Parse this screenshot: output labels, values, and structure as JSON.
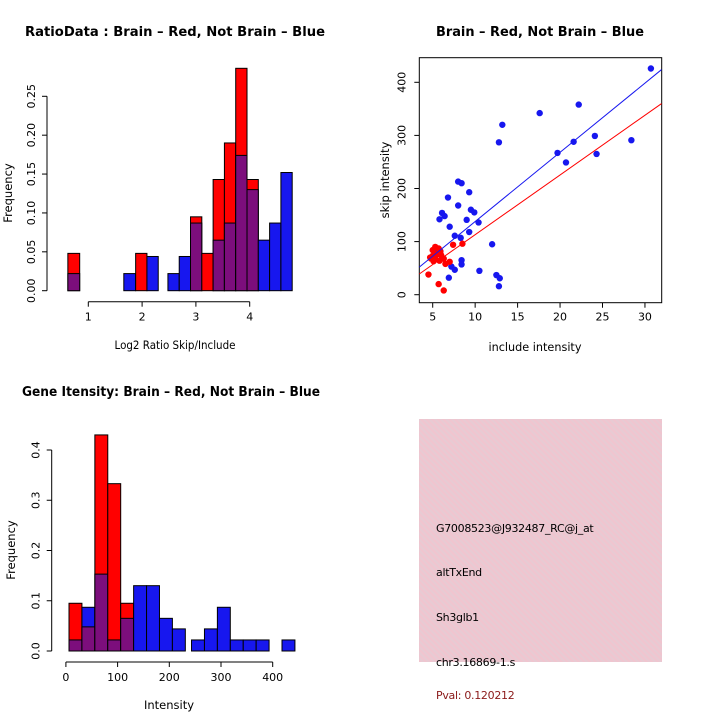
{
  "colors": {
    "red": "#ff0000",
    "blue": "#1717ef",
    "purple": "#7c0e7c",
    "pink_box": "#eec6cf",
    "pval_text": "#8b1a1a",
    "black": "#000000"
  },
  "legend_semantics": {
    "red": "Brain",
    "blue": "Not Brain",
    "purple": "Overlap"
  },
  "info_box": {
    "probe_id": "G7008523@J932487_RC@j_at",
    "event_type": "altTxEnd",
    "gene_name": "Sh3glb1",
    "location": "chr3.16869-1.s",
    "pval": "Pval: 0.120212"
  },
  "chart_data": [
    {
      "id": "ratio_hist",
      "type": "bar",
      "subtype": "overlaid-histogram",
      "title": "RatioData : Brain – Red, Not Brain – Blue",
      "xlabel": "Log2 Ratio Skip/Include",
      "ylabel": "Frequency",
      "xlim": [
        0.5,
        4.95
      ],
      "ylim": [
        0,
        0.29
      ],
      "axis_x_range": [
        1,
        4
      ],
      "x_ticks": [
        1,
        2,
        3,
        4
      ],
      "x_tick_labels": [
        "1",
        "2",
        "3",
        "4"
      ],
      "y_ticks": [
        0,
        0.05,
        0.1,
        0.15,
        0.2,
        0.25
      ],
      "y_tick_labels": [
        "0.00",
        "0.05",
        "0.10",
        "0.15",
        "0.20",
        "0.25"
      ],
      "bars": [
        {
          "x0": 0.62,
          "x1": 0.84,
          "red": 0.048,
          "overlap": 0.022
        },
        {
          "x0": 1.66,
          "x1": 1.88,
          "blue": 0.022
        },
        {
          "x0": 1.88,
          "x1": 2.09,
          "red": 0.048
        },
        {
          "x0": 2.09,
          "x1": 2.3,
          "blue": 0.044
        },
        {
          "x0": 2.48,
          "x1": 2.69,
          "blue": 0.022
        },
        {
          "x0": 2.69,
          "x1": 2.9,
          "blue": 0.044
        },
        {
          "x0": 2.9,
          "x1": 3.11,
          "red": 0.095,
          "overlap": 0.087
        },
        {
          "x0": 3.11,
          "x1": 3.32,
          "red": 0.048
        },
        {
          "x0": 3.32,
          "x1": 3.53,
          "red": 0.143,
          "overlap": 0.065
        },
        {
          "x0": 3.53,
          "x1": 3.74,
          "red": 0.19,
          "overlap": 0.087
        },
        {
          "x0": 3.74,
          "x1": 3.95,
          "red": 0.286,
          "overlap": 0.174
        },
        {
          "x0": 3.95,
          "x1": 4.16,
          "red": 0.143,
          "overlap": 0.13
        },
        {
          "x0": 4.16,
          "x1": 4.37,
          "blue": 0.065
        },
        {
          "x0": 4.37,
          "x1": 4.58,
          "blue": 0.087
        },
        {
          "x0": 4.58,
          "x1": 4.79,
          "blue": 0.152
        }
      ]
    },
    {
      "id": "scatter",
      "type": "scatter",
      "title": "Brain – Red, Not Brain – Blue",
      "xlabel": "include intensity",
      "ylabel": "skip intensity",
      "xlim": [
        3.42,
        31.96
      ],
      "ylim": [
        -15,
        443
      ],
      "x_ticks": [
        5,
        10,
        15,
        20,
        25,
        30
      ],
      "x_tick_labels": [
        "5",
        "10",
        "15",
        "20",
        "25",
        "30"
      ],
      "y_ticks": [
        0,
        100,
        200,
        300,
        400
      ],
      "y_tick_labels": [
        "0",
        "100",
        "200",
        "300",
        "400"
      ],
      "blue_points": [
        [
          30.7,
          426
        ],
        [
          22.2,
          358
        ],
        [
          17.6,
          342
        ],
        [
          13.2,
          320
        ],
        [
          24.1,
          299
        ],
        [
          28.4,
          291
        ],
        [
          21.6,
          288
        ],
        [
          12.8,
          287
        ],
        [
          19.7,
          267
        ],
        [
          24.3,
          265
        ],
        [
          20.7,
          249
        ],
        [
          8.0,
          213
        ],
        [
          8.4,
          210
        ],
        [
          9.3,
          193
        ],
        [
          6.8,
          183
        ],
        [
          8.0,
          168
        ],
        [
          9.5,
          160
        ],
        [
          9.9,
          155
        ],
        [
          6.1,
          154
        ],
        [
          6.4,
          148
        ],
        [
          5.8,
          142
        ],
        [
          9.0,
          141
        ],
        [
          10.4,
          136
        ],
        [
          7.0,
          128
        ],
        [
          9.3,
          118
        ],
        [
          7.6,
          111
        ],
        [
          8.3,
          107
        ],
        [
          12.0,
          95
        ],
        [
          5.9,
          82
        ],
        [
          5.5,
          79
        ],
        [
          8.4,
          65
        ],
        [
          8.4,
          57
        ],
        [
          7.2,
          53
        ],
        [
          7.6,
          47
        ],
        [
          10.5,
          45
        ],
        [
          12.5,
          37
        ],
        [
          12.9,
          31
        ],
        [
          6.9,
          32
        ],
        [
          12.8,
          16
        ]
      ],
      "red_points": [
        [
          5.3,
          90
        ],
        [
          5.7,
          87
        ],
        [
          5.0,
          84
        ],
        [
          5.9,
          81
        ],
        [
          5.5,
          76
        ],
        [
          5.0,
          73
        ],
        [
          6.0,
          74
        ],
        [
          4.8,
          68
        ],
        [
          5.3,
          67
        ],
        [
          5.8,
          64
        ],
        [
          6.3,
          68
        ],
        [
          4.7,
          70
        ],
        [
          5.1,
          63
        ],
        [
          7.4,
          94
        ],
        [
          8.5,
          96
        ],
        [
          6.5,
          58
        ],
        [
          7.0,
          62
        ],
        [
          4.5,
          38
        ],
        [
          5.7,
          20
        ],
        [
          6.3,
          8
        ]
      ],
      "blue_line": {
        "x0": 3.42,
        "y0": 52,
        "x1": 31.96,
        "y1": 424
      },
      "red_line": {
        "x0": 3.42,
        "y0": 39,
        "x1": 31.96,
        "y1": 360
      }
    },
    {
      "id": "gene_hist",
      "type": "bar",
      "subtype": "overlaid-histogram",
      "title": "Gene Itensity: Brain – Red, Not Brain – Blue",
      "xlabel": "Intensity",
      "ylabel": "Frequency",
      "xlim": [
        0,
        460
      ],
      "ylim": [
        0,
        0.44
      ],
      "axis_x_range": [
        0,
        400
      ],
      "x_ticks": [
        0,
        100,
        200,
        300,
        400
      ],
      "x_tick_labels": [
        "0",
        "100",
        "200",
        "300",
        "400"
      ],
      "y_ticks": [
        0,
        0.1,
        0.2,
        0.3,
        0.4
      ],
      "y_tick_labels": [
        "0.0",
        "0.1",
        "0.2",
        "0.3",
        "0.4"
      ],
      "bars": [
        {
          "x0": 6,
          "x1": 31,
          "red": 0.095,
          "overlap": 0.022
        },
        {
          "x0": 31,
          "x1": 56,
          "blue": 0.087,
          "overlap": 0.048
        },
        {
          "x0": 56,
          "x1": 81,
          "red": 0.43,
          "overlap": 0.153
        },
        {
          "x0": 81,
          "x1": 106,
          "red": 0.333,
          "overlap": 0.022
        },
        {
          "x0": 106,
          "x1": 131,
          "red": 0.095,
          "overlap": 0.065
        },
        {
          "x0": 131,
          "x1": 156,
          "blue": 0.13
        },
        {
          "x0": 156,
          "x1": 181,
          "blue": 0.13
        },
        {
          "x0": 181,
          "x1": 206,
          "blue": 0.065
        },
        {
          "x0": 206,
          "x1": 231,
          "blue": 0.044
        },
        {
          "x0": 243,
          "x1": 268,
          "blue": 0.022
        },
        {
          "x0": 268,
          "x1": 293,
          "blue": 0.044
        },
        {
          "x0": 293,
          "x1": 318,
          "blue": 0.087
        },
        {
          "x0": 318,
          "x1": 343,
          "blue": 0.022
        },
        {
          "x0": 343,
          "x1": 368,
          "blue": 0.022
        },
        {
          "x0": 368,
          "x1": 393,
          "blue": 0.022
        },
        {
          "x0": 418,
          "x1": 443,
          "blue": 0.022
        }
      ]
    }
  ]
}
